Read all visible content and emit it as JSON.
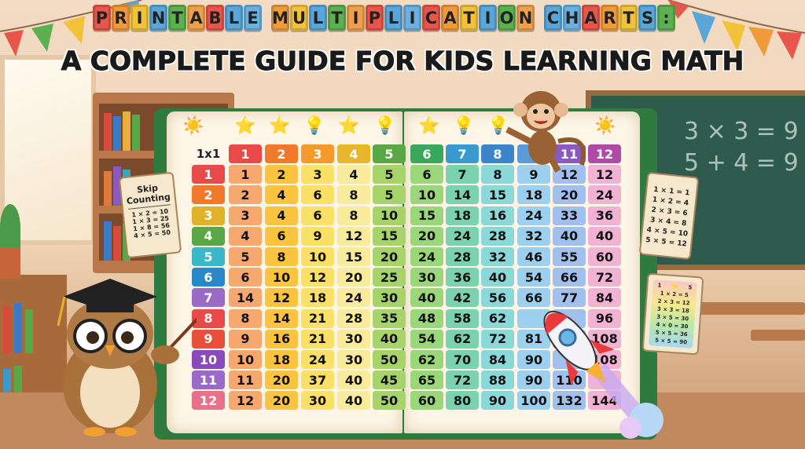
{
  "title": {
    "line1": "PRINTABLE MULTIPLICATION CHARTS:",
    "line2": "A COMPLETE GUIDE FOR KIDS LEARNING MATH",
    "block_colors": [
      "#e8554a",
      "#f09a3a",
      "#f2c23a",
      "#5aa6d8",
      "#5cb050",
      "#f0a04a",
      "#e8554a",
      "#5aa6d8",
      "#6ab0e0"
    ]
  },
  "chalkboard": [
    "3 × 3 = 9",
    "5 + 4 = 9"
  ],
  "skip_counting": {
    "title": "Skip Counting",
    "lines": [
      "1 × 2 = 10",
      "1 × 3 = 25",
      "1 × 8 = 56",
      "4 × 5 = 50"
    ]
  },
  "scroll_right_top": [
    "1 × 1 = 1",
    "1 × 2 = 4",
    "2 × 3 = 6",
    "3 × 4 = 8",
    "4 × 5 = 10",
    "5 × 5 = 12"
  ],
  "scroll_right_bottom": {
    "header": [
      "1",
      "5"
    ],
    "lines": [
      "1 × 2 = 5",
      "2 × 3 = 12",
      "3 × 3 = 18",
      "3 × 5 = 30",
      "4 × 0 = 30",
      "5 × 5 = 36",
      "5 × 5 = 90"
    ]
  },
  "left_table": {
    "corner": "1x1",
    "col_headers": [
      "1",
      "2",
      "3",
      "4",
      "5"
    ],
    "header_colors": [
      "#e84a4a",
      "#f07a2a",
      "#f39a2a",
      "#e8b62a",
      "#5aa845"
    ],
    "cell_colors": [
      "#f7a86e",
      "#fac441",
      "#fbe067",
      "#f8eb9c",
      "#a6d46a"
    ],
    "row_headers": [
      "1",
      "2",
      "3",
      "4",
      "5",
      "6",
      "7",
      "8",
      "9",
      "10",
      "11",
      "12"
    ],
    "row_header_colors": [
      "#e84a4a",
      "#f07a2a",
      "#e0b22a",
      "#5aa845",
      "#3ab8c8",
      "#2a88c8",
      "#9a6ac8",
      "#e84a4a",
      "#e8503a",
      "#8a4ab8",
      "#9a6ac8",
      "#e8708a"
    ],
    "rows": [
      [
        "1",
        "2",
        "3",
        "4",
        "5"
      ],
      [
        "2",
        "4",
        "6",
        "8",
        "5"
      ],
      [
        "3",
        "4",
        "6",
        "8",
        "10"
      ],
      [
        "4",
        "6",
        "9",
        "12",
        "15"
      ],
      [
        "5",
        "8",
        "10",
        "15",
        "20"
      ],
      [
        "6",
        "10",
        "12",
        "20",
        "25"
      ],
      [
        "14",
        "12",
        "18",
        "24",
        "30"
      ],
      [
        "8",
        "14",
        "21",
        "28",
        "35"
      ],
      [
        "9",
        "16",
        "21",
        "30",
        "40"
      ],
      [
        "10",
        "18",
        "24",
        "30",
        "50"
      ],
      [
        "11",
        "20",
        "37",
        "40",
        "45"
      ],
      [
        "12",
        "20",
        "30",
        "40",
        "50"
      ]
    ]
  },
  "right_table": {
    "col_headers": [
      "6",
      "7",
      "8",
      "",
      "11",
      "12"
    ],
    "header_colors": [
      "#3aa85a",
      "#3a9ad0",
      "#3a86cc",
      "#5a9ad8",
      "#8a5ac0",
      "#b04aa8"
    ],
    "cell_colors": [
      "#9ad67a",
      "#7ad2b0",
      "#8ad8d8",
      "#9cd0ee",
      "#a2c0ee",
      "#f2b2d4"
    ],
    "rows": [
      [
        "6",
        "7",
        "8",
        "9",
        "12",
        "12"
      ],
      [
        "10",
        "14",
        "15",
        "18",
        "20",
        "24"
      ],
      [
        "15",
        "18",
        "16",
        "24",
        "33",
        "36"
      ],
      [
        "20",
        "24",
        "28",
        "32",
        "40",
        "40"
      ],
      [
        "24",
        "28",
        "32",
        "46",
        "55",
        "60"
      ],
      [
        "30",
        "36",
        "40",
        "54",
        "66",
        "72"
      ],
      [
        "40",
        "42",
        "56",
        "66",
        "77",
        "84"
      ],
      [
        "48",
        "58",
        "62",
        "",
        "",
        "96"
      ],
      [
        "54",
        "62",
        "72",
        "81",
        "",
        "108"
      ],
      [
        "62",
        "70",
        "84",
        "90",
        "",
        "108"
      ],
      [
        "65",
        "72",
        "88",
        "90",
        "110",
        ""
      ],
      [
        "60",
        "80",
        "90",
        "100",
        "132",
        "144"
      ]
    ]
  },
  "page_icons_left": [
    "sun-icon",
    "star-icon",
    "star-icon",
    "lightbulb-icon",
    "star-icon",
    "lightbulb-icon"
  ],
  "page_icons_right": [
    "star-icon",
    "lightbulb-icon",
    "lightbulb-icon",
    "sun-icon"
  ]
}
